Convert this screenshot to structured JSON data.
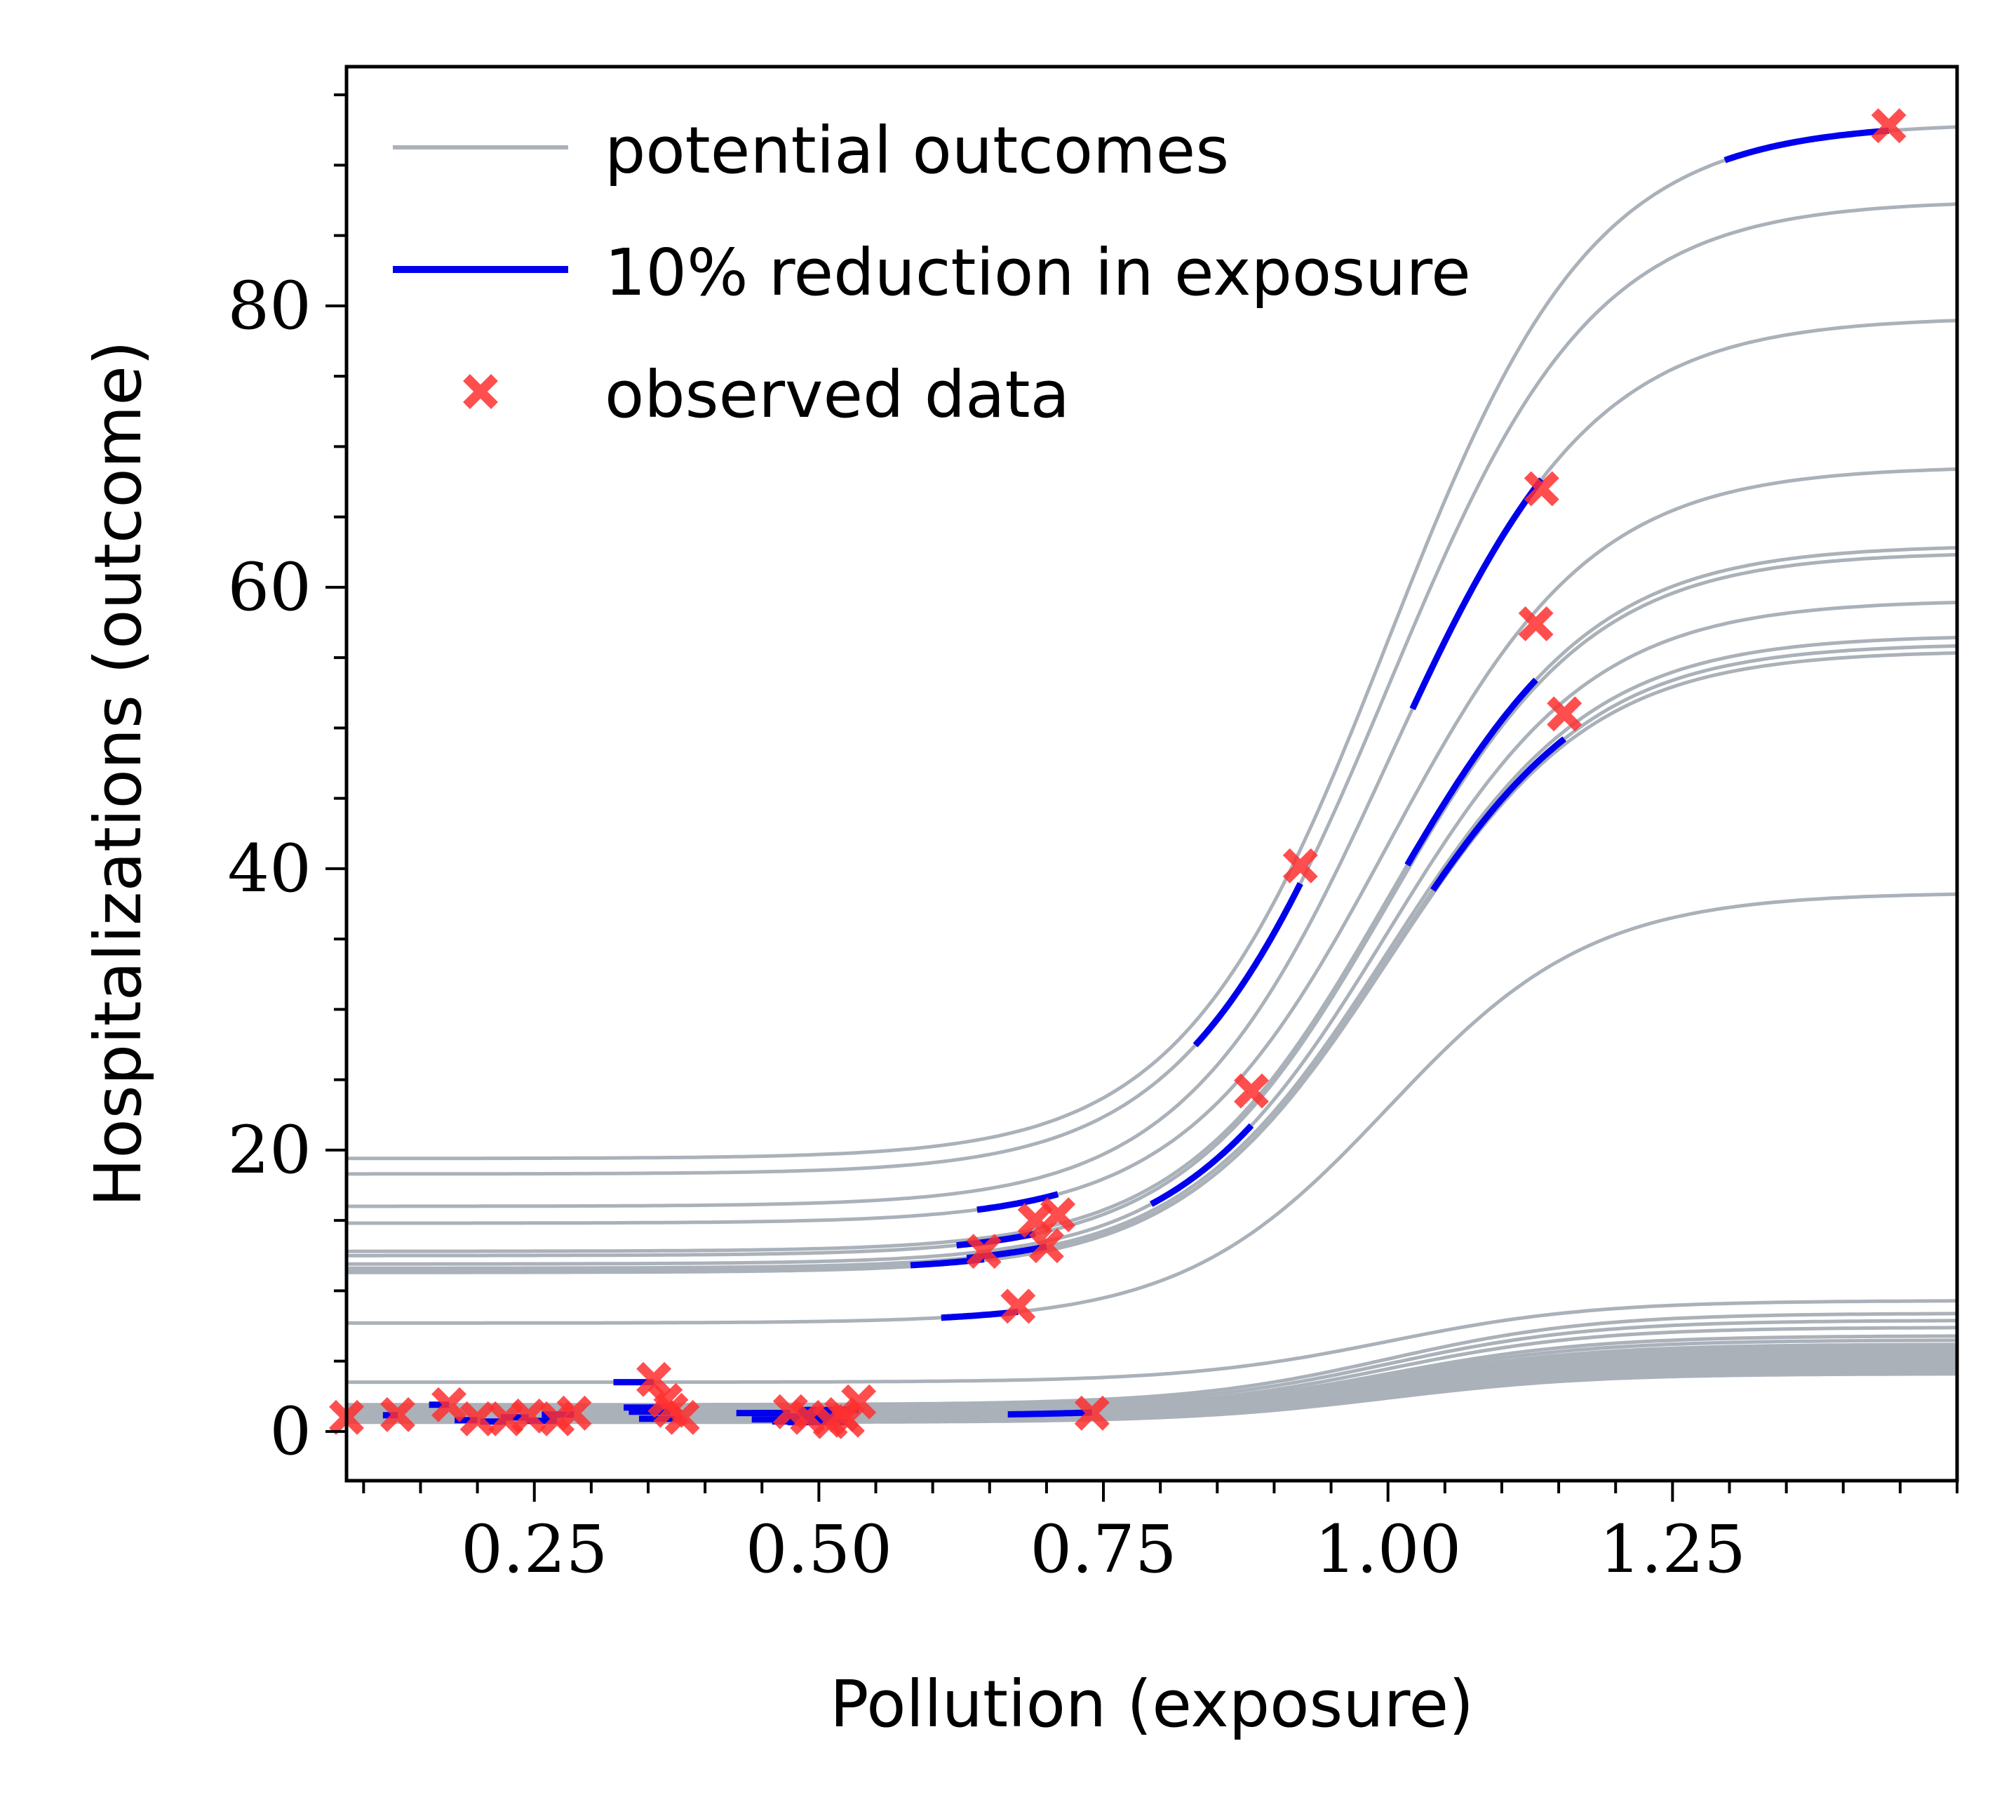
{
  "chart_data": {
    "type": "line",
    "xlabel": "Pollution (exposure)",
    "ylabel": "Hospitalizations (outcome)",
    "xlim": [
      0.085,
      1.5
    ],
    "ylim": [
      -3.5,
      97
    ],
    "xticks": [
      0.25,
      0.5,
      0.75,
      1.0,
      1.25
    ],
    "xtick_labels": [
      "0.25",
      "0.50",
      "0.75",
      "1.00",
      "1.25"
    ],
    "yticks": [
      0,
      20,
      40,
      60,
      80
    ],
    "ytick_labels": [
      "0",
      "20",
      "40",
      "60",
      "80"
    ],
    "grid": false,
    "legend_position": "top-left",
    "legend": {
      "potential": "potential outcomes",
      "reduction": "10% reduction in exposure",
      "observed": "observed data"
    },
    "colors": {
      "potential": "#aab1b9",
      "reduction": "#0000ee",
      "observed": "#ff3030"
    },
    "curve_center": 1.0,
    "curve_scale": 0.09,
    "series": [
      {
        "low": 19.4,
        "high": 93.0,
        "obs_x": 1.44,
        "obs_y": 92.8
      },
      {
        "low": 18.3,
        "high": 87.5,
        "obs_x": 0.923,
        "obs_y": 40.2
      },
      {
        "low": 16.0,
        "high": 79.2,
        "obs_x": 1.135,
        "obs_y": 67.0
      },
      {
        "low": 14.8,
        "high": 68.6,
        "obs_x": 0.71,
        "obs_y": 15.4
      },
      {
        "low": 12.8,
        "high": 63.0,
        "obs_x": 1.13,
        "obs_y": 57.4
      },
      {
        "low": 12.5,
        "high": 62.5,
        "obs_x": 0.69,
        "obs_y": 15.0
      },
      {
        "low": 11.9,
        "high": 59.1,
        "obs_x": 0.88,
        "obs_y": 24.2
      },
      {
        "low": 11.6,
        "high": 56.6,
        "obs_x": 0.7,
        "obs_y": 13.2
      },
      {
        "low": 11.3,
        "high": 56.0,
        "obs_x": 1.155,
        "obs_y": 51.0
      },
      {
        "low": 11.4,
        "high": 55.5,
        "obs_x": 0.645,
        "obs_y": 12.8
      },
      {
        "low": 7.7,
        "high": 38.3,
        "obs_x": 0.675,
        "obs_y": 8.9
      },
      {
        "low": 3.5,
        "high": 9.3,
        "obs_x": 0.355,
        "obs_y": 3.7
      },
      {
        "low": 1.9,
        "high": 8.4,
        "obs_x": 0.175,
        "obs_y": 1.9
      },
      {
        "low": 1.7,
        "high": 7.9,
        "obs_x": 0.365,
        "obs_y": 2.2
      },
      {
        "low": 1.5,
        "high": 7.4,
        "obs_x": 0.535,
        "obs_y": 2.1
      },
      {
        "low": 1.4,
        "high": 6.8,
        "obs_x": 0.37,
        "obs_y": 1.5
      },
      {
        "low": 1.3,
        "high": 6.5,
        "obs_x": 0.475,
        "obs_y": 1.4
      },
      {
        "low": 1.2,
        "high": 6.2,
        "obs_x": 0.285,
        "obs_y": 1.3
      },
      {
        "low": 1.15,
        "high": 6.0,
        "obs_x": 0.13,
        "obs_y": 1.2
      },
      {
        "low": 1.1,
        "high": 5.8,
        "obs_x": 0.74,
        "obs_y": 1.3
      },
      {
        "low": 1.05,
        "high": 5.6,
        "obs_x": 0.52,
        "obs_y": 1.2
      },
      {
        "low": 1.0,
        "high": 5.4,
        "obs_x": 0.245,
        "obs_y": 1.1
      },
      {
        "low": 0.95,
        "high": 5.2,
        "obs_x": 0.085,
        "obs_y": 1.0
      },
      {
        "low": 0.9,
        "high": 5.0,
        "obs_x": 0.38,
        "obs_y": 1.0
      },
      {
        "low": 0.85,
        "high": 4.8,
        "obs_x": 0.49,
        "obs_y": 1.0
      },
      {
        "low": 0.8,
        "high": 4.6,
        "obs_x": 0.2,
        "obs_y": 0.9
      },
      {
        "low": 0.75,
        "high": 4.4,
        "obs_x": 0.27,
        "obs_y": 0.9
      },
      {
        "low": 0.7,
        "high": 4.3,
        "obs_x": 0.51,
        "obs_y": 0.7
      },
      {
        "low": 0.7,
        "high": 4.2,
        "obs_x": 0.225,
        "obs_y": 0.9
      },
      {
        "low": 0.65,
        "high": 4.1,
        "obs_x": 0.525,
        "obs_y": 0.8
      }
    ]
  }
}
